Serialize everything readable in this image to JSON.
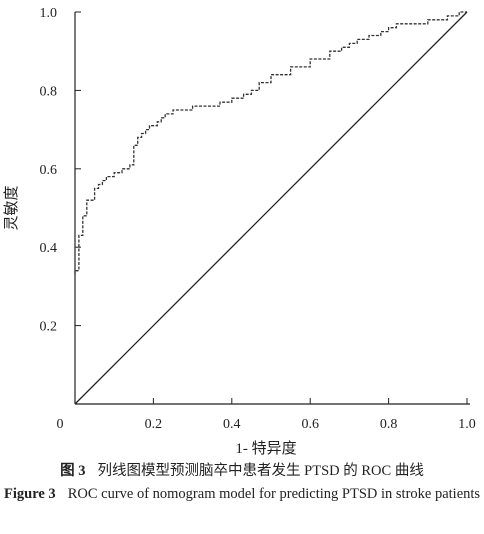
{
  "chart_data": {
    "type": "line",
    "xlabel": "1- 特异度",
    "ylabel": "灵敏度",
    "xlim": [
      0,
      1
    ],
    "ylim": [
      0,
      1
    ],
    "x_ticks": [
      "0",
      "0.2",
      "0.4",
      "0.6",
      "0.8",
      "1.0"
    ],
    "y_ticks": [
      "0.2",
      "0.4",
      "0.6",
      "0.8",
      "1.0"
    ],
    "grid": false,
    "series": [
      {
        "style": "step",
        "x": [
          0.0,
          0.0,
          0.01,
          0.01,
          0.02,
          0.02,
          0.03,
          0.03,
          0.05,
          0.05,
          0.06,
          0.07,
          0.08,
          0.1,
          0.12,
          0.14,
          0.15,
          0.15,
          0.16,
          0.17,
          0.18,
          0.19,
          0.2,
          0.21,
          0.22,
          0.23,
          0.25,
          0.27,
          0.3,
          0.33,
          0.37,
          0.4,
          0.43,
          0.45,
          0.47,
          0.5,
          0.55,
          0.6,
          0.65,
          0.68,
          0.7,
          0.72,
          0.75,
          0.78,
          0.8,
          0.82,
          0.85,
          0.88,
          0.9,
          0.92,
          0.95,
          0.97,
          0.98,
          1.0
        ],
        "y": [
          0.33,
          0.34,
          0.34,
          0.43,
          0.44,
          0.48,
          0.5,
          0.52,
          0.53,
          0.55,
          0.56,
          0.57,
          0.58,
          0.59,
          0.6,
          0.61,
          0.61,
          0.66,
          0.68,
          0.69,
          0.7,
          0.71,
          0.71,
          0.72,
          0.73,
          0.74,
          0.75,
          0.75,
          0.76,
          0.76,
          0.77,
          0.78,
          0.79,
          0.8,
          0.82,
          0.84,
          0.86,
          0.88,
          0.9,
          0.91,
          0.92,
          0.93,
          0.94,
          0.95,
          0.96,
          0.97,
          0.97,
          0.97,
          0.98,
          0.98,
          0.99,
          0.99,
          1.0,
          1.0
        ]
      },
      {
        "style": "reference-diagonal",
        "x": [
          0,
          1
        ],
        "y": [
          0,
          1
        ]
      }
    ]
  },
  "caption": {
    "zh_label": "图 3",
    "zh_text": "列线图模型预测脑卒中患者发生 PTSD 的 ROC 曲线",
    "en_label": "Figure 3",
    "en_text": "ROC curve of nomogram model for predicting PTSD in stroke patients"
  }
}
